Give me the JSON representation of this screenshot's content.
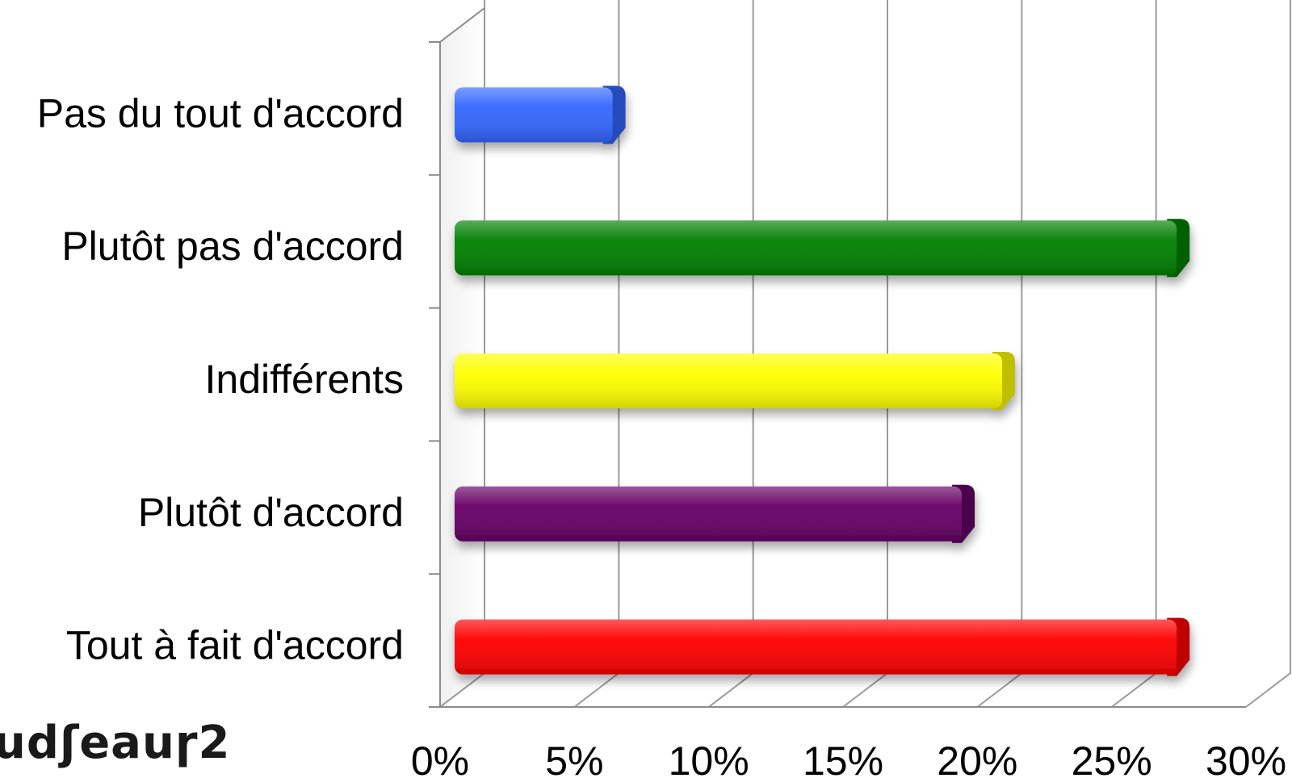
{
  "watermark": "udʃeauɼ2",
  "chart_data": {
    "type": "bar",
    "orientation": "horizontal",
    "style": "3d",
    "categories": [
      "Pas du tout d'accord",
      "Plutôt pas d'accord",
      "Indifférents",
      "Plutôt d'accord",
      "Tout à fait d'accord"
    ],
    "values": [
      6,
      27,
      20.5,
      19,
      27
    ],
    "colors": [
      "#3366ff",
      "#008000",
      "#ffff00",
      "#660066",
      "#ff0000"
    ],
    "title": "",
    "xlabel": "",
    "ylabel": "",
    "xlim": [
      0,
      30
    ],
    "x_ticks": [
      "0%",
      "5%",
      "10%",
      "15%",
      "20%",
      "25%",
      "30%"
    ],
    "grid": true,
    "legend": "none"
  }
}
